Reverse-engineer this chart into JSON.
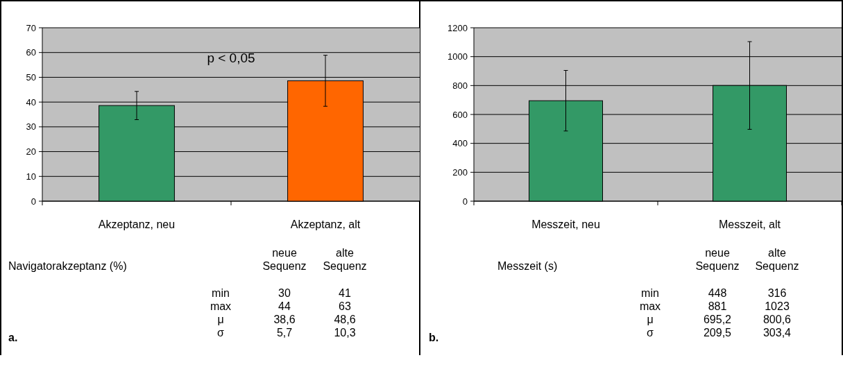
{
  "chart_data": [
    {
      "type": "bar",
      "categories": [
        "Akzeptanz, neu",
        "Akzeptanz, alt"
      ],
      "values": [
        38.6,
        48.6
      ],
      "colors": [
        "#339966",
        "#ff6600"
      ],
      "errors": [
        5.7,
        10.3
      ],
      "ylim": [
        0,
        70
      ],
      "yticks": [
        0,
        10,
        20,
        30,
        40,
        50,
        60,
        70
      ],
      "grid": "y",
      "annotations": [
        "Navigatorakzeptanz (%)",
        "neue Sequenz",
        "alte Sequenz",
        "min",
        "max",
        "μ",
        "σ",
        "30",
        "41",
        "44",
        "63",
        "38,6",
        "48,6",
        "5,7",
        "10,3",
        "a.",
        "p < 0,05"
      ]
    },
    {
      "type": "bar",
      "categories": [
        "Messzeit, neu",
        "Messzeit, alt"
      ],
      "values": [
        695.2,
        800.6
      ],
      "colors": [
        "#339966",
        "#339966"
      ],
      "errors": [
        209.5,
        303.4
      ],
      "ylim": [
        0,
        1200
      ],
      "yticks": [
        0,
        200,
        400,
        600,
        800,
        1000,
        1200
      ],
      "grid": "y",
      "annotations": [
        "Messzeit (s)",
        "neue Sequenz",
        "alte Sequenz",
        "min",
        "max",
        "μ",
        "σ",
        "448",
        "316",
        "881",
        "1023",
        "695,2",
        "800,6",
        "209,5",
        "303,4",
        "b."
      ]
    }
  ]
}
